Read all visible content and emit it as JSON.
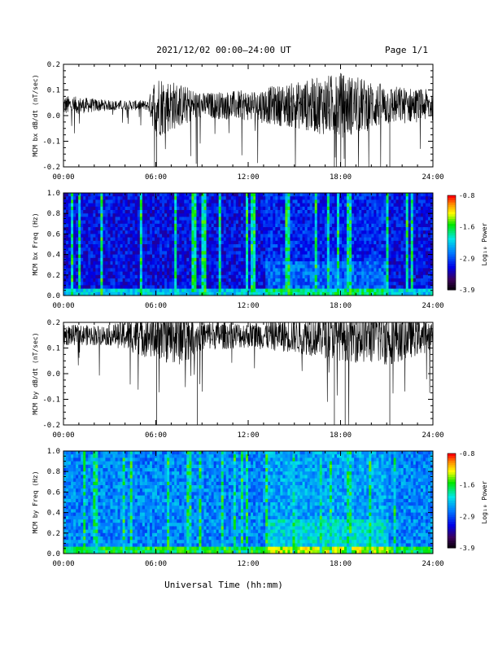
{
  "header": {
    "title": "2021/12/02  00:00–24:00 UT",
    "page": "Page 1/1"
  },
  "footer": {
    "xlabel": "Universal Time (hh:mm)"
  },
  "colorbar": {
    "label": "Log₁₀ Power",
    "ticks": [
      "-0.8",
      "-1.6",
      "-2.9",
      "-3.9"
    ],
    "colors": [
      "#ff0000",
      "#ff8000",
      "#ffff00",
      "#00ff00",
      "#00ffff",
      "#0080ff",
      "#0000ff",
      "#400080",
      "#000000"
    ]
  },
  "chart_data": [
    {
      "type": "line",
      "ylabel": "MCM bx dB/dt (nT/sec)",
      "xlim": [
        0,
        24
      ],
      "ylim": [
        -0.2,
        0.2
      ],
      "x_ticks": [
        "00:00",
        "06:00",
        "12:00",
        "18:00",
        "24:00"
      ],
      "y_ticks": [
        "0.2",
        "0.1",
        "0.0",
        "-0.1",
        "-0.2"
      ],
      "baseline": 0.04,
      "activity_envelope": [
        {
          "t": 0,
          "amp": 0.04
        },
        {
          "t": 3,
          "amp": 0.02
        },
        {
          "t": 5.5,
          "amp": 0.02
        },
        {
          "t": 6,
          "amp": 0.13
        },
        {
          "t": 7,
          "amp": 0.1
        },
        {
          "t": 9,
          "amp": 0.05
        },
        {
          "t": 12,
          "amp": 0.06
        },
        {
          "t": 15,
          "amp": 0.09
        },
        {
          "t": 18,
          "amp": 0.13
        },
        {
          "t": 21,
          "amp": 0.08
        },
        {
          "t": 24,
          "amp": 0.06
        }
      ]
    },
    {
      "type": "heatmap",
      "ylabel": "MCM bx Freq (Hz)",
      "xlim": [
        0,
        24
      ],
      "ylim": [
        0.0,
        1.0
      ],
      "x_ticks": [
        "00:00",
        "06:00",
        "12:00",
        "18:00",
        "24:00"
      ],
      "y_ticks": [
        "1.0",
        "0.8",
        "0.6",
        "0.4",
        "0.2",
        "0.0"
      ],
      "zlim": [
        -3.9,
        -0.8
      ],
      "background_level": -3.5
    },
    {
      "type": "line",
      "ylabel": "MCM by dB/dt (nT/sec)",
      "xlim": [
        0,
        24
      ],
      "ylim": [
        -0.2,
        0.2
      ],
      "x_ticks": [
        "00:00",
        "06:00",
        "12:00",
        "18:00",
        "24:00"
      ],
      "y_ticks": [
        "0.2",
        "0.1",
        "0.0",
        "-0.1",
        "-0.2"
      ],
      "baseline": 0.15,
      "activity_envelope": [
        {
          "t": 0,
          "amp": 0.04
        },
        {
          "t": 3,
          "amp": 0.04
        },
        {
          "t": 6,
          "amp": 0.1
        },
        {
          "t": 7.5,
          "amp": 0.12
        },
        {
          "t": 9,
          "amp": 0.06
        },
        {
          "t": 12,
          "amp": 0.05
        },
        {
          "t": 15,
          "amp": 0.07
        },
        {
          "t": 18,
          "amp": 0.1
        },
        {
          "t": 21,
          "amp": 0.12
        },
        {
          "t": 24,
          "amp": 0.06
        }
      ]
    },
    {
      "type": "heatmap",
      "ylabel": "MCM by Freq (Hz)",
      "xlim": [
        0,
        24
      ],
      "ylim": [
        0.0,
        1.0
      ],
      "x_ticks": [
        "00:00",
        "06:00",
        "12:00",
        "18:00",
        "24:00"
      ],
      "y_ticks": [
        "1.0",
        "0.8",
        "0.6",
        "0.4",
        "0.2",
        "0.0"
      ],
      "zlim": [
        -3.9,
        -0.8
      ],
      "background_level": -3.0
    }
  ]
}
